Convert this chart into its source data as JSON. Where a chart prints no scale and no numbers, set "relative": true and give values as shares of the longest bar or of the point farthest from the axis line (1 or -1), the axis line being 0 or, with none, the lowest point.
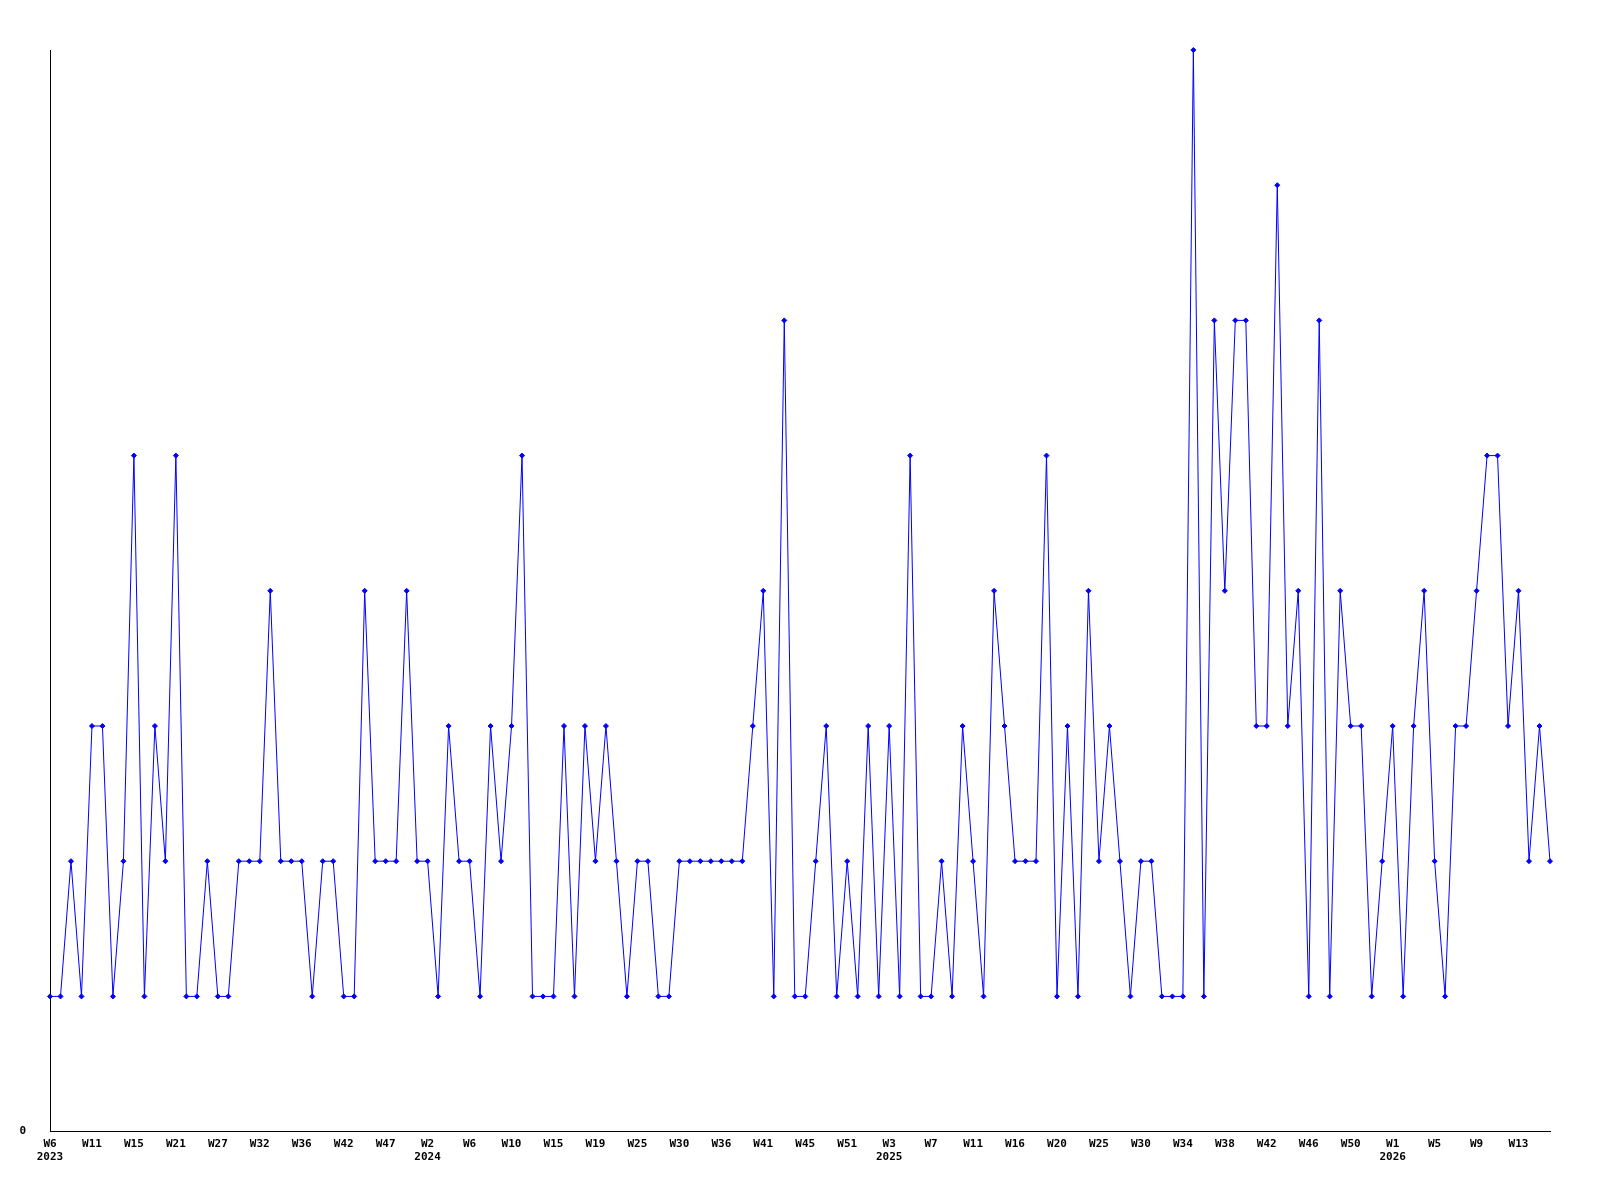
{
  "chart_data": {
    "type": "line",
    "relative": true,
    "marker": "diamond",
    "line_style": "solid",
    "grid": false,
    "legend": false,
    "annotations": [
      "0"
    ],
    "categories": [
      "W6\n2023",
      null,
      null,
      null,
      "W11",
      null,
      null,
      null,
      "W15",
      null,
      null,
      null,
      "W21",
      null,
      null,
      null,
      "W27",
      null,
      null,
      null,
      "W32",
      null,
      null,
      null,
      "W36",
      null,
      null,
      null,
      "W42",
      null,
      null,
      null,
      "W47",
      null,
      null,
      null,
      "W2\n2024",
      null,
      null,
      null,
      "W6",
      null,
      null,
      null,
      "W10",
      null,
      null,
      null,
      "W15",
      null,
      null,
      null,
      "W19",
      null,
      null,
      null,
      "W25",
      null,
      null,
      null,
      "W30",
      null,
      null,
      null,
      "W36",
      null,
      null,
      null,
      "W41",
      null,
      null,
      null,
      "W45",
      null,
      null,
      null,
      "W51",
      null,
      null,
      null,
      "W3\n2025",
      null,
      null,
      null,
      "W7",
      null,
      null,
      null,
      "W11",
      null,
      null,
      null,
      "W16",
      null,
      null,
      null,
      "W20",
      null,
      null,
      null,
      "W25",
      null,
      null,
      null,
      "W30",
      null,
      null,
      null,
      "W34",
      null,
      null,
      null,
      "W38",
      null,
      null,
      null,
      "W42",
      null,
      null,
      null,
      "W46",
      null,
      null,
      null,
      "W50",
      null,
      null,
      null,
      "W1\n2026",
      null,
      null,
      null,
      "W5",
      null,
      null,
      null,
      "W9",
      null,
      null,
      null,
      "W13",
      null,
      null,
      null
    ],
    "series": [
      {
        "color": "#0000ff",
        "values": [
          0.125,
          0.125,
          0.25,
          0.125,
          0.375,
          0.375,
          0.125,
          0.25,
          0.625,
          0.125,
          0.375,
          0.25,
          0.625,
          0.125,
          0.125,
          0.25,
          0.125,
          0.125,
          0.25,
          0.25,
          0.25,
          0.5,
          0.25,
          0.25,
          0.25,
          0.125,
          0.25,
          0.25,
          0.125,
          0.125,
          0.5,
          0.25,
          0.25,
          0.25,
          0.5,
          0.25,
          0.25,
          0.125,
          0.375,
          0.25,
          0.25,
          0.125,
          0.375,
          0.25,
          0.375,
          0.625,
          0.125,
          0.125,
          0.125,
          0.375,
          0.125,
          0.375,
          0.25,
          0.375,
          0.25,
          0.125,
          0.25,
          0.25,
          0.125,
          0.125,
          0.25,
          0.25,
          0.25,
          0.25,
          0.25,
          0.25,
          0.25,
          0.375,
          0.5,
          0.125,
          0.75,
          0.125,
          0.125,
          0.25,
          0.375,
          0.125,
          0.25,
          0.125,
          0.375,
          0.125,
          0.375,
          0.125,
          0.625,
          0.125,
          0.125,
          0.25,
          0.125,
          0.375,
          0.25,
          0.125,
          0.5,
          0.375,
          0.25,
          0.25,
          0.25,
          0.625,
          0.125,
          0.375,
          0.125,
          0.5,
          0.25,
          0.375,
          0.25,
          0.125,
          0.25,
          0.25,
          0.125,
          0.125,
          0.125,
          1,
          0.125,
          0.75,
          0.5,
          0.75,
          0.75,
          0.375,
          0.375,
          0.875,
          0.375,
          0.5,
          0.125,
          0.75,
          0.125,
          0.5,
          0.375,
          0.375,
          0.125,
          0.25,
          0.375,
          0.125,
          0.375,
          0.5,
          0.25,
          0.125,
          0.375,
          0.375,
          0.5,
          0.625,
          0.625,
          0.375,
          0.5,
          0.25,
          0.375,
          0.25
        ]
      }
    ]
  }
}
